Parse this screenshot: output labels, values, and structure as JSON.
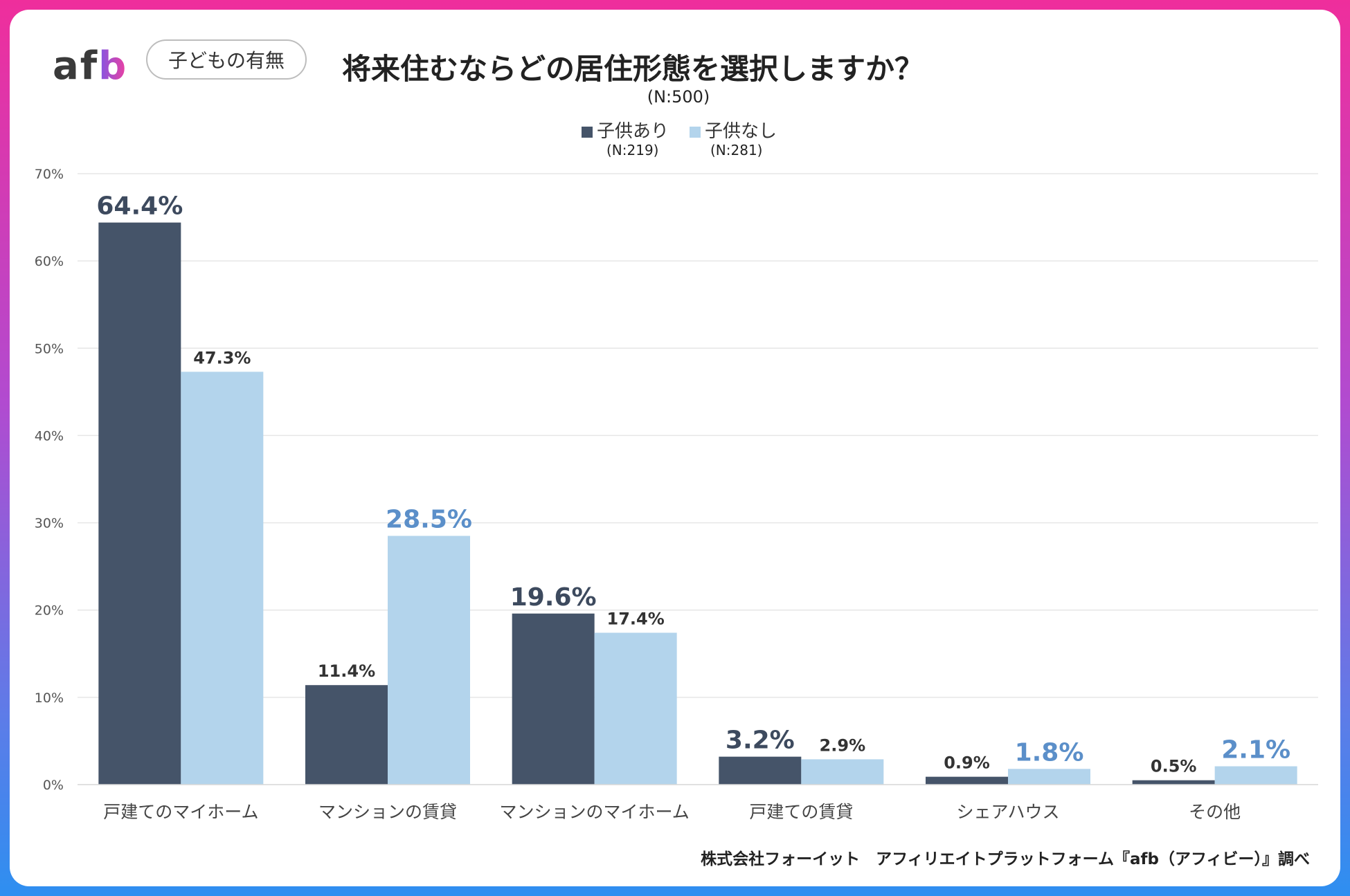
{
  "brand": {
    "logo_af": "af",
    "logo_b": "b",
    "tag": "子どもの有無"
  },
  "footer": "株式会社フォーイット　アフィリエイトプラットフォーム『afb（アフィビー）』調べ",
  "colors": {
    "series1": "#455469",
    "series2": "#b3d4ec",
    "highlight1": "#3d4a5e",
    "highlight2": "#5b8fc9",
    "label": "#333333",
    "grid": "#e6e6e6",
    "axis_text": "#555555",
    "category_text": "#444444"
  },
  "chart_data": {
    "type": "bar",
    "title": "将来住むならどの居住形態を選択しますか？",
    "subtitle": "(N:500)",
    "categories": [
      "戸建てのマイホーム",
      "マンションの賃貸",
      "マンションのマイホーム",
      "戸建ての賃貸",
      "シェアハウス",
      "その他"
    ],
    "series": [
      {
        "name": "子供あり",
        "n": "(N:219)",
        "values": [
          64.4,
          11.4,
          19.6,
          3.2,
          0.9,
          0.5
        ]
      },
      {
        "name": "子供なし",
        "n": "(N:281)",
        "values": [
          47.3,
          28.5,
          17.4,
          2.9,
          1.8,
          2.1
        ]
      }
    ],
    "value_labels": [
      [
        "64.4%",
        "11.4%",
        "19.6%",
        "3.2%",
        "0.9%",
        "0.5%"
      ],
      [
        "47.3%",
        "28.5%",
        "17.4%",
        "2.9%",
        "1.8%",
        "2.1%"
      ]
    ],
    "highlight": [
      [
        true,
        false,
        true,
        true,
        false,
        false
      ],
      [
        false,
        true,
        false,
        false,
        true,
        true
      ]
    ],
    "ylim": [
      0,
      70
    ],
    "yticks": [
      0,
      10,
      20,
      30,
      40,
      50,
      60,
      70
    ],
    "ytick_labels": [
      "0%",
      "10%",
      "20%",
      "30%",
      "40%",
      "50%",
      "60%",
      "70%"
    ],
    "xlabel": "",
    "ylabel": "",
    "grid": true,
    "legend_position": "top-center"
  }
}
